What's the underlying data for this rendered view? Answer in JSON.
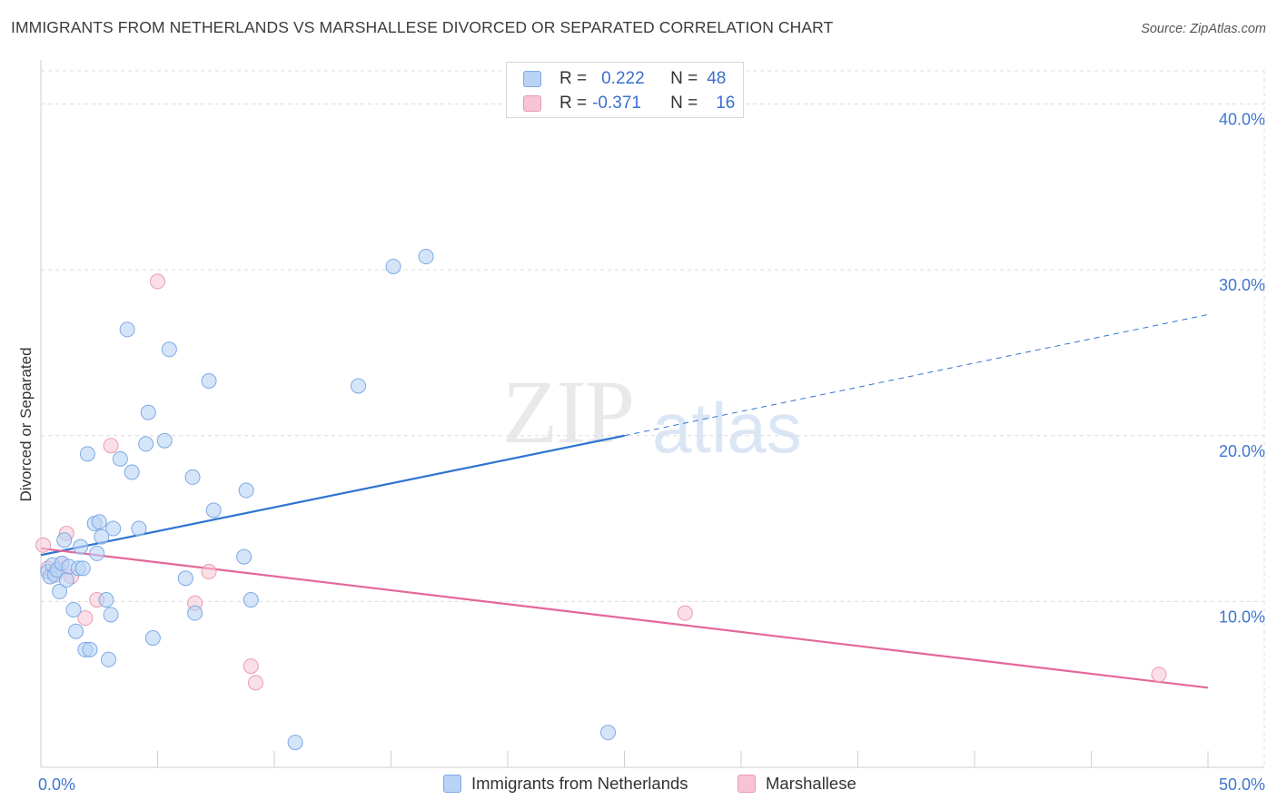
{
  "header": {
    "title": "IMMIGRANTS FROM NETHERLANDS VS MARSHALLESE DIVORCED OR SEPARATED CORRELATION CHART",
    "source": "Source: ZipAtlas.com"
  },
  "watermark": {
    "zip": "ZIP",
    "atlas": "atlas"
  },
  "legend": {
    "rows": [
      {
        "r_label": "R =",
        "r_value": "0.222",
        "n_label": "N =",
        "n_value": "48"
      },
      {
        "r_label": "R =",
        "r_value": "-0.371",
        "n_label": "N =",
        "n_value": "16"
      }
    ]
  },
  "bottom_legend": {
    "items": [
      {
        "label": "Immigrants from Netherlands"
      },
      {
        "label": "Marshallese"
      }
    ]
  },
  "colors": {
    "blue_fill": "#b9d3f5",
    "blue_stroke": "#7ea9e4",
    "blue_line": "#2f74d0",
    "pink_fill": "#f8c4d4",
    "pink_stroke": "#e99ab4",
    "pink_line": "#e4679a",
    "tick_label": "#3f76cd",
    "grid": "#dcdcdc"
  },
  "chart_data": {
    "type": "scatter",
    "title": "IMMIGRANTS FROM NETHERLANDS VS MARSHALLESE DIVORCED OR SEPARATED CORRELATION CHART",
    "xlabel": "",
    "ylabel": "Divorced or Separated",
    "xlim": [
      0,
      50
    ],
    "ylim": [
      0,
      42
    ],
    "x_ticks": [
      {
        "value": 0,
        "label": "0.0%"
      },
      {
        "value": 50,
        "label": "50.0%"
      }
    ],
    "y_ticks": [
      {
        "value": 10,
        "label": "10.0%"
      },
      {
        "value": 20,
        "label": "20.0%"
      },
      {
        "value": 30,
        "label": "30.0%"
      },
      {
        "value": 40,
        "label": "40.0%"
      }
    ],
    "grid": true,
    "legend_position": "top-center",
    "series": [
      {
        "name": "Immigrants from Netherlands",
        "color": "#b9d3f5",
        "r": 0.222,
        "n": 48,
        "trend": {
          "x0": 0,
          "y0": 12.8,
          "x1": 25,
          "y1": 20.0,
          "dash_to_x": 50,
          "dash_to_y": 27.3
        },
        "points": [
          [
            0.3,
            11.8
          ],
          [
            0.4,
            11.5
          ],
          [
            0.5,
            12.2
          ],
          [
            0.6,
            11.6
          ],
          [
            0.7,
            11.9
          ],
          [
            0.8,
            10.6
          ],
          [
            0.9,
            12.3
          ],
          [
            1.0,
            13.7
          ],
          [
            1.1,
            11.3
          ],
          [
            1.2,
            12.1
          ],
          [
            1.4,
            9.5
          ],
          [
            1.5,
            8.2
          ],
          [
            1.6,
            12.0
          ],
          [
            1.8,
            12.0
          ],
          [
            1.7,
            13.3
          ],
          [
            1.9,
            7.1
          ],
          [
            2.0,
            18.9
          ],
          [
            2.1,
            7.1
          ],
          [
            2.3,
            14.7
          ],
          [
            2.5,
            14.8
          ],
          [
            2.4,
            12.9
          ],
          [
            2.6,
            13.9
          ],
          [
            2.8,
            10.1
          ],
          [
            2.9,
            6.5
          ],
          [
            3.0,
            9.2
          ],
          [
            3.1,
            14.4
          ],
          [
            3.4,
            18.6
          ],
          [
            3.7,
            26.4
          ],
          [
            3.9,
            17.8
          ],
          [
            4.2,
            14.4
          ],
          [
            4.5,
            19.5
          ],
          [
            4.6,
            21.4
          ],
          [
            4.8,
            7.8
          ],
          [
            5.3,
            19.7
          ],
          [
            5.5,
            25.2
          ],
          [
            6.2,
            11.4
          ],
          [
            6.5,
            17.5
          ],
          [
            6.6,
            9.3
          ],
          [
            7.2,
            23.3
          ],
          [
            7.4,
            15.5
          ],
          [
            8.7,
            12.7
          ],
          [
            8.8,
            16.7
          ],
          [
            9.0,
            10.1
          ],
          [
            10.9,
            1.5
          ],
          [
            13.6,
            23.0
          ],
          [
            15.1,
            30.2
          ],
          [
            16.5,
            30.8
          ],
          [
            24.3,
            2.1
          ]
        ]
      },
      {
        "name": "Marshallese",
        "color": "#f8c4d4",
        "r": -0.371,
        "n": 16,
        "trend": {
          "x0": 0,
          "y0": 13.2,
          "x1": 50,
          "y1": 4.8
        },
        "points": [
          [
            0.1,
            13.4
          ],
          [
            0.3,
            12.0
          ],
          [
            0.6,
            11.7
          ],
          [
            0.9,
            12.3
          ],
          [
            1.1,
            14.1
          ],
          [
            1.3,
            11.5
          ],
          [
            1.9,
            9.0
          ],
          [
            2.4,
            10.1
          ],
          [
            3.0,
            19.4
          ],
          [
            5.0,
            29.3
          ],
          [
            6.6,
            9.9
          ],
          [
            7.2,
            11.8
          ],
          [
            9.0,
            6.1
          ],
          [
            9.2,
            5.1
          ],
          [
            27.6,
            9.3
          ],
          [
            47.9,
            5.6
          ]
        ]
      }
    ]
  }
}
